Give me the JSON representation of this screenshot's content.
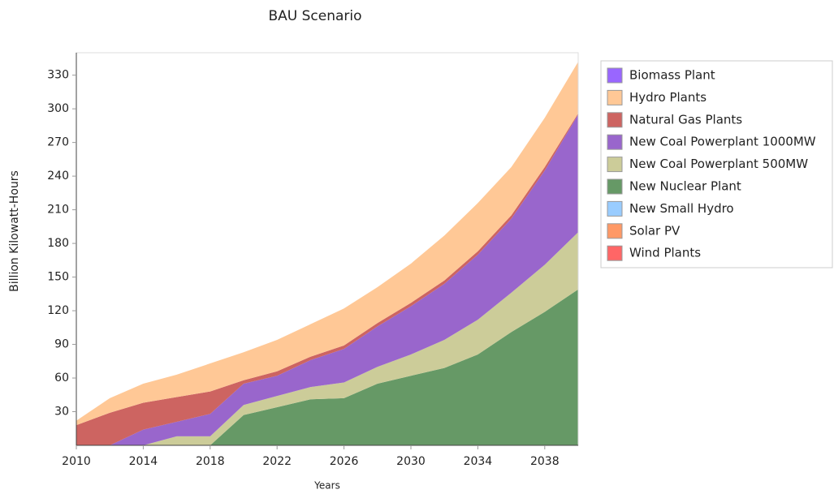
{
  "chart_data": {
    "type": "stacked_area",
    "title": "BAU Scenario",
    "xlabel": "Years",
    "ylabel": "Billion Kilowatt-Hours",
    "x": [
      2010,
      2012,
      2014,
      2016,
      2018,
      2020,
      2022,
      2024,
      2026,
      2028,
      2030,
      2032,
      2034,
      2036,
      2038,
      2040
    ],
    "xlim": [
      2010,
      2040
    ],
    "xticks": [
      2010,
      2014,
      2018,
      2022,
      2026,
      2030,
      2034,
      2038
    ],
    "ylim": [
      0,
      350
    ],
    "yticks": [
      30,
      60,
      90,
      120,
      150,
      180,
      210,
      240,
      270,
      300,
      330
    ],
    "legend": "right",
    "series": [
      {
        "name": "Biomass Plant",
        "color": "#9966ff",
        "values": [
          0,
          0,
          0,
          0,
          0,
          0,
          0,
          0,
          0,
          0,
          0,
          0,
          0,
          0,
          0,
          0
        ]
      },
      {
        "name": "Hydro Plants",
        "color": "#ffc896",
        "values": [
          4,
          13,
          17,
          20,
          25,
          25,
          28,
          29,
          33,
          32,
          35,
          40,
          43,
          43,
          44,
          46
        ]
      },
      {
        "name": "Natural Gas Plants",
        "color": "#cd6461",
        "values": [
          18,
          29,
          24,
          22,
          20,
          3,
          4,
          3,
          3,
          3,
          3,
          3,
          3,
          3,
          3,
          1
        ]
      },
      {
        "name": "New Coal Powerplant 1000MW",
        "color": "#9966cc",
        "values": [
          0,
          0,
          14,
          13,
          20,
          19,
          18,
          24,
          30,
          36,
          43,
          50,
          58,
          66,
          84,
          105
        ]
      },
      {
        "name": "New Coal Powerplant 500MW",
        "color": "#cccc99",
        "values": [
          0,
          0,
          0,
          8,
          8,
          9,
          10,
          11,
          14,
          15,
          19,
          25,
          31,
          35,
          42,
          51
        ]
      },
      {
        "name": "New Nuclear Plant",
        "color": "#669966",
        "values": [
          0,
          0,
          0,
          0,
          0,
          27,
          34,
          41,
          42,
          55,
          62,
          69,
          81,
          101,
          119,
          139
        ]
      },
      {
        "name": "New Small Hydro",
        "color": "#99ccff",
        "values": [
          0,
          0,
          0,
          0,
          0,
          0,
          0,
          0,
          0,
          0,
          0,
          0,
          0,
          0,
          0,
          0
        ]
      },
      {
        "name": "Solar PV",
        "color": "#ff9966",
        "values": [
          0,
          0,
          0,
          0,
          0,
          0,
          0,
          0,
          0,
          0,
          0,
          0,
          0,
          0,
          0,
          0
        ]
      },
      {
        "name": "Wind Plants",
        "color": "#ff6666",
        "values": [
          0,
          0,
          0,
          0,
          0,
          0,
          0,
          0,
          0,
          0,
          0,
          0,
          0,
          0,
          0,
          0
        ]
      }
    ]
  }
}
